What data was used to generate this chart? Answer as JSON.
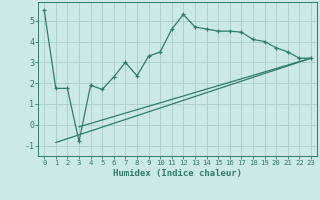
{
  "line1_x": [
    0,
    1,
    2,
    3,
    4,
    5,
    6,
    7,
    8,
    9,
    10,
    11,
    12,
    13,
    14,
    15,
    16,
    17,
    18,
    19,
    20,
    21,
    22,
    23
  ],
  "line1_y": [
    5.5,
    1.75,
    1.75,
    -0.8,
    1.9,
    1.7,
    2.3,
    3.0,
    2.35,
    3.3,
    3.5,
    4.6,
    5.3,
    4.7,
    4.6,
    4.5,
    4.5,
    4.45,
    4.1,
    4.0,
    3.7,
    3.5,
    3.2,
    3.2
  ],
  "line2_x": [
    1,
    23
  ],
  "line2_y": [
    -0.85,
    3.2
  ],
  "line3_x": [
    3,
    23
  ],
  "line3_y": [
    -0.1,
    3.2
  ],
  "color": "#2d7d6e",
  "bg_color": "#cce8e8",
  "grid_color": "#aacccc",
  "xlabel": "Humidex (Indice chaleur)",
  "xlim": [
    -0.5,
    23.5
  ],
  "ylim": [
    -1.5,
    5.9
  ],
  "yticks": [
    -1,
    0,
    1,
    2,
    3,
    4,
    5
  ],
  "xticks": [
    0,
    1,
    2,
    3,
    4,
    5,
    6,
    7,
    8,
    9,
    10,
    11,
    12,
    13,
    14,
    15,
    16,
    17,
    18,
    19,
    20,
    21,
    22,
    23
  ]
}
